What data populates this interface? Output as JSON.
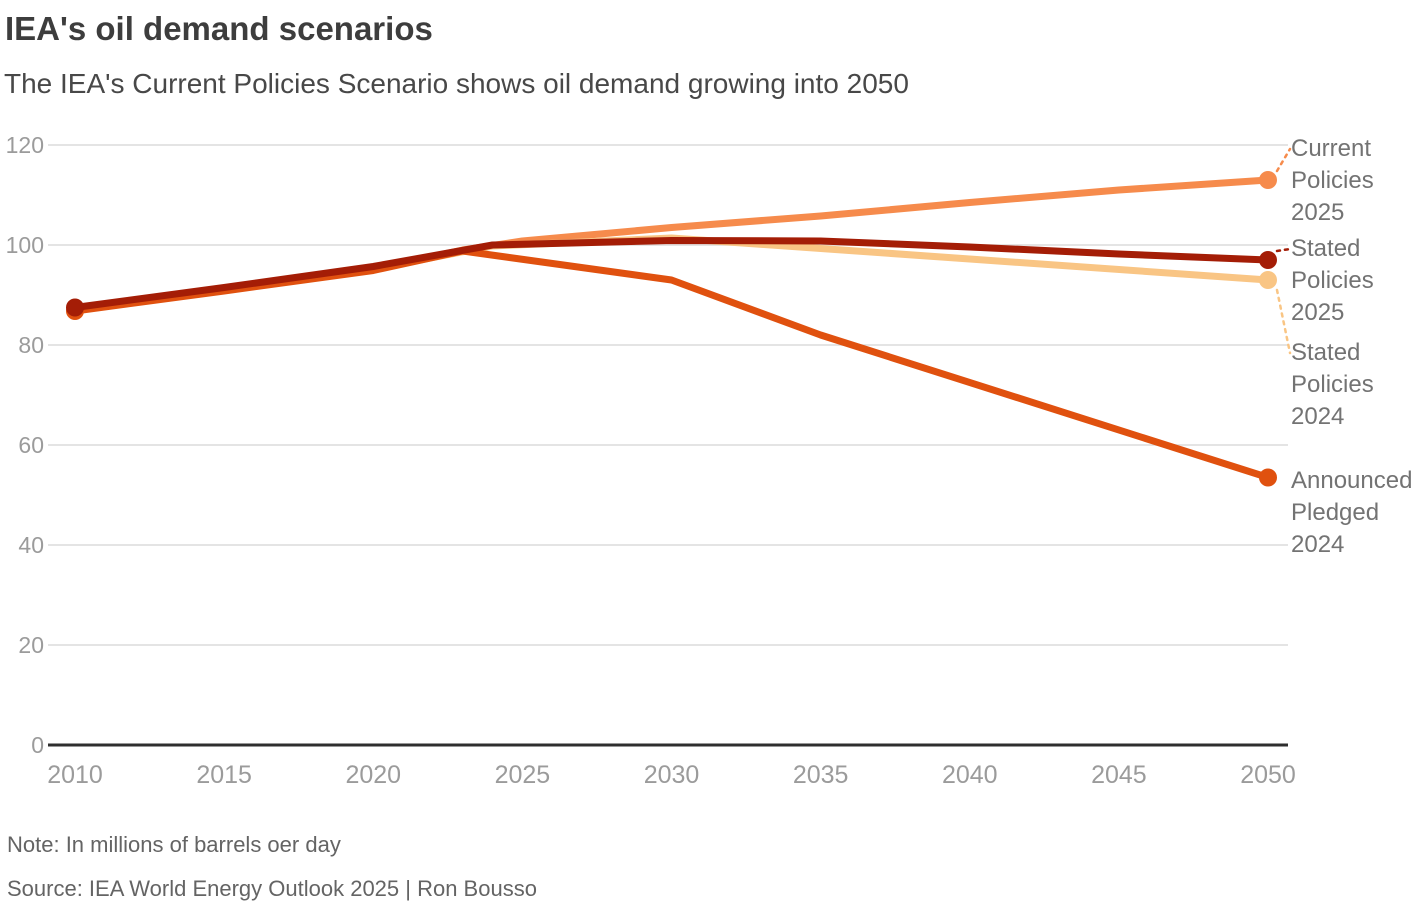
{
  "header": {
    "title": "IEA's oil demand scenarios",
    "subtitle": "The IEA's Current Policies Scenario shows oil demand growing into 2050"
  },
  "footer": {
    "note": "Note: In millions of barrels oer day",
    "source": "Source: IEA World Energy Outlook 2025 | Ron Bousso"
  },
  "chart_data": {
    "type": "line",
    "title": "IEA's oil demand scenarios",
    "subtitle": "The IEA's Current Policies Scenario shows oil demand growing into 2050",
    "xlabel": "",
    "ylabel": "",
    "xlim": [
      2010,
      2050
    ],
    "ylim": [
      0,
      120
    ],
    "x_ticks": [
      "2010",
      "2015",
      "2020",
      "2025",
      "2030",
      "2035",
      "2040",
      "2045",
      "2050"
    ],
    "y_ticks": [
      0,
      20,
      40,
      60,
      80,
      100,
      120
    ],
    "grid": "horizontal",
    "legend_position": "right-edge-labels",
    "colors": {
      "grid": "#dcdcdc",
      "axis": "#2e2e2e",
      "tick_text": "#9b9b9b",
      "legend_text": "#737373"
    },
    "series": [
      {
        "name": "Current Policies 2025",
        "color": "#F68B4C",
        "z": 1,
        "start_dot": false,
        "end_dot": true,
        "points": [
          [
            2010,
            87
          ],
          [
            2015,
            91
          ],
          [
            2020,
            95.2
          ],
          [
            2023,
            99
          ],
          [
            2025,
            100.8
          ],
          [
            2030,
            103.5
          ],
          [
            2035,
            105.8
          ],
          [
            2040,
            108.5
          ],
          [
            2045,
            111
          ],
          [
            2050,
            113
          ]
        ]
      },
      {
        "name": "Stated Policies 2025",
        "color": "#A41D06",
        "z": 4,
        "start_dot": true,
        "end_dot": true,
        "points": [
          [
            2010,
            87.5
          ],
          [
            2015,
            91.5
          ],
          [
            2020,
            95.7
          ],
          [
            2024,
            100
          ],
          [
            2030,
            100.9
          ],
          [
            2035,
            100.8
          ],
          [
            2040,
            99.6
          ],
          [
            2045,
            98.2
          ],
          [
            2050,
            97
          ]
        ]
      },
      {
        "name": "Stated Policies 2024",
        "color": "#F9C584",
        "z": 2,
        "start_dot": false,
        "end_dot": true,
        "points": [
          [
            2010,
            87
          ],
          [
            2015,
            91
          ],
          [
            2020,
            95.2
          ],
          [
            2024,
            99.8
          ],
          [
            2030,
            101.4
          ],
          [
            2040,
            97.2
          ],
          [
            2050,
            93
          ]
        ]
      },
      {
        "name": "Announced Pledged 2024",
        "color": "#E0510F",
        "z": 3,
        "start_dot": true,
        "end_dot": true,
        "points": [
          [
            2010,
            86.8
          ],
          [
            2015,
            90.8
          ],
          [
            2020,
            94.9
          ],
          [
            2023,
            98.8
          ],
          [
            2030,
            93
          ],
          [
            2035,
            82
          ],
          [
            2050,
            53.5
          ]
        ]
      }
    ]
  }
}
